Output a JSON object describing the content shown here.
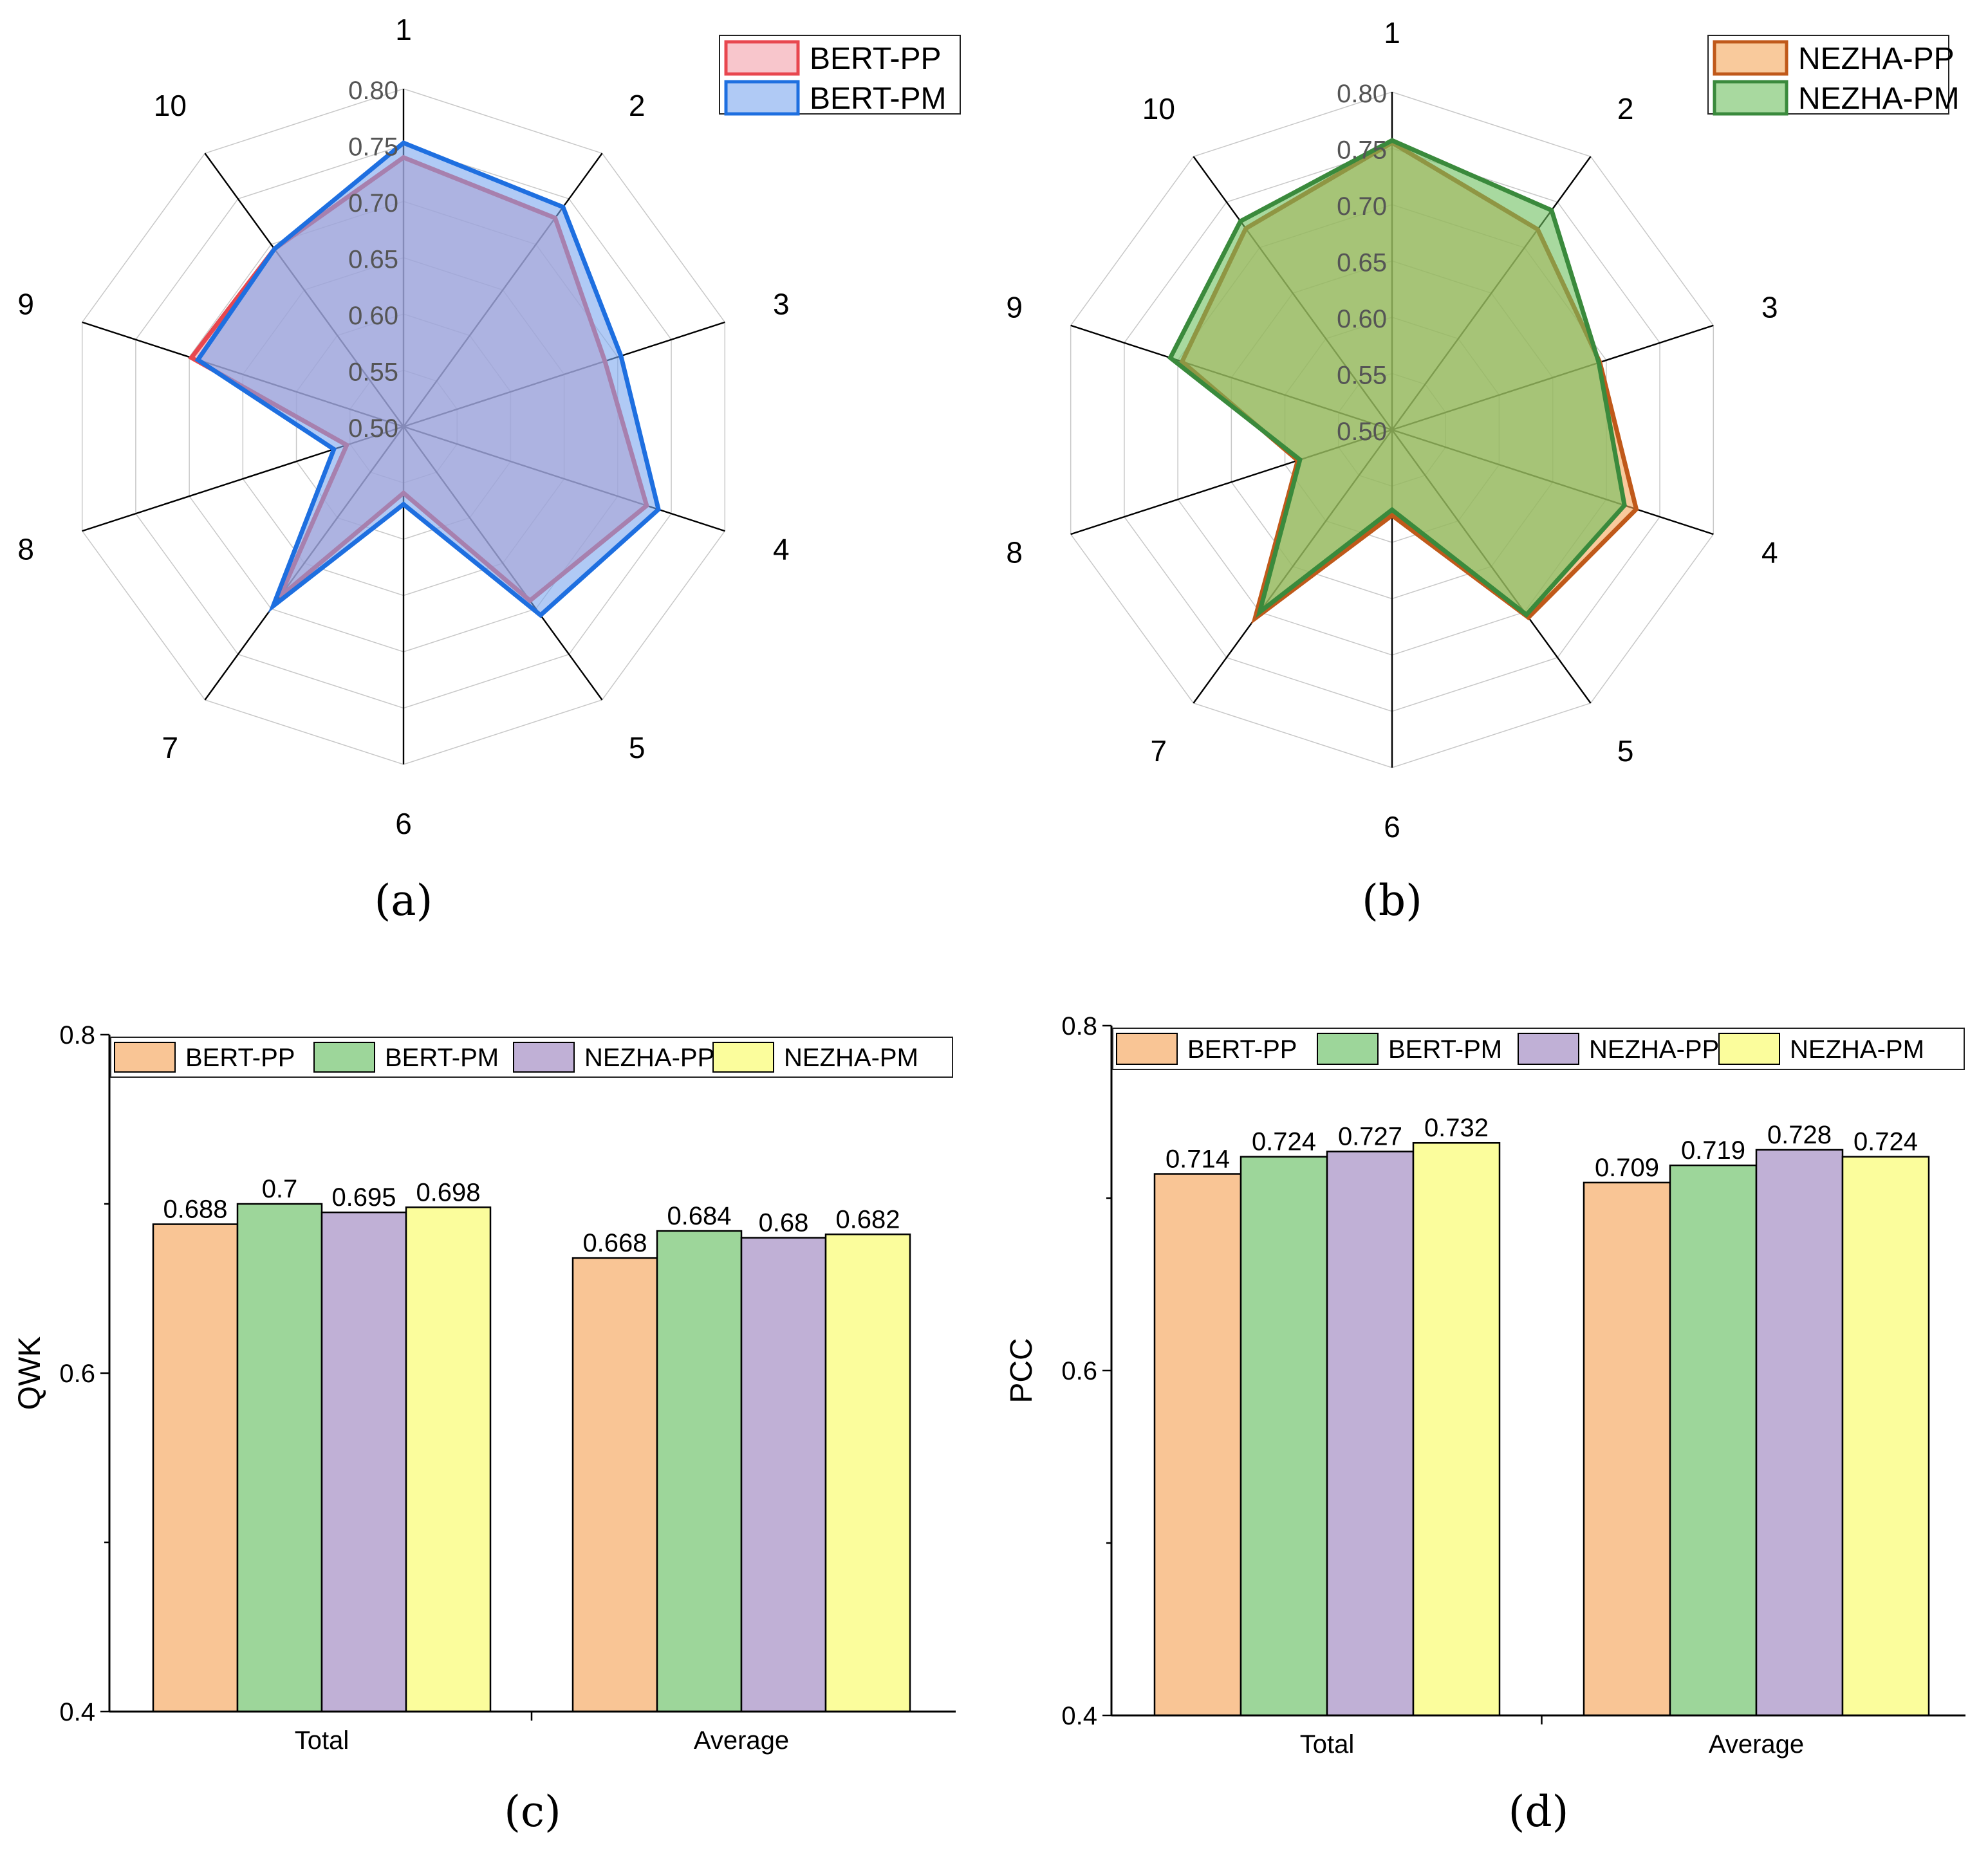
{
  "chart_data": [
    {
      "id": "a",
      "type": "radar",
      "panel_label": "(a)",
      "axes": [
        "1",
        "2",
        "3",
        "4",
        "5",
        "6",
        "7",
        "8",
        "9",
        "10"
      ],
      "rlim": [
        0.5,
        0.8
      ],
      "ticks": [
        "0.50",
        "0.55",
        "0.60",
        "0.65",
        "0.70",
        "0.75",
        "0.80"
      ],
      "legend_position": "top-right",
      "series": [
        {
          "name": "BERT-PP",
          "values": [
            0.739,
            0.729,
            0.688,
            0.727,
            0.691,
            0.559,
            0.687,
            0.553,
            0.698,
            0.695
          ],
          "fill": "#f4a0aa",
          "stroke": "#e8474f"
        },
        {
          "name": "BERT-PM",
          "values": [
            0.752,
            0.741,
            0.703,
            0.738,
            0.707,
            0.569,
            0.697,
            0.565,
            0.692,
            0.695
          ],
          "fill": "#7ba6ee",
          "stroke": "#1e6fe0"
        }
      ]
    },
    {
      "id": "b",
      "type": "radar",
      "panel_label": "(b)",
      "axes": [
        "1",
        "2",
        "3",
        "4",
        "5",
        "6",
        "7",
        "8",
        "9",
        "10"
      ],
      "rlim": [
        0.5,
        0.8
      ],
      "ticks": [
        "0.50",
        "0.55",
        "0.60",
        "0.65",
        "0.70",
        "0.75",
        "0.80"
      ],
      "legend_position": "top-right",
      "series": [
        {
          "name": "NEZHA-PP",
          "values": [
            0.755,
            0.72,
            0.694,
            0.728,
            0.706,
            0.576,
            0.707,
            0.588,
            0.696,
            0.721
          ],
          "fill": "#f5a75a",
          "stroke": "#c0591a"
        },
        {
          "name": "NEZHA-PM",
          "values": [
            0.757,
            0.741,
            0.693,
            0.717,
            0.703,
            0.571,
            0.7,
            0.586,
            0.707,
            0.729
          ],
          "fill": "#6ebf5f",
          "stroke": "#3a8a3c"
        }
      ]
    },
    {
      "id": "c",
      "type": "bar",
      "panel_label": "(c)",
      "ylabel": "QWK",
      "xlabel": "",
      "ylim": [
        0.4,
        0.8
      ],
      "yticks": [
        "0.4",
        "0.6",
        "0.8"
      ],
      "categories": [
        "Total",
        "Average"
      ],
      "legend_position": "top",
      "series": [
        {
          "name": "BERT-PP",
          "values": [
            0.688,
            0.668
          ],
          "labels": [
            "0.688",
            "0.668"
          ],
          "color": "#f9c595"
        },
        {
          "name": "BERT-PM",
          "values": [
            0.7,
            0.684
          ],
          "labels": [
            "0.7",
            "0.684"
          ],
          "color": "#9dd69a"
        },
        {
          "name": "NEZHA-PP",
          "values": [
            0.695,
            0.68
          ],
          "labels": [
            "0.695",
            "0.68"
          ],
          "color": "#c0b0d6"
        },
        {
          "name": "NEZHA-PM",
          "values": [
            0.698,
            0.682
          ],
          "labels": [
            "0.698",
            "0.682"
          ],
          "color": "#fbfd9c"
        }
      ]
    },
    {
      "id": "d",
      "type": "bar",
      "panel_label": "(d)",
      "ylabel": "PCC",
      "xlabel": "",
      "ylim": [
        0.4,
        0.8
      ],
      "yticks": [
        "0.4",
        "0.6",
        "0.8"
      ],
      "categories": [
        "Total",
        "Average"
      ],
      "legend_position": "top",
      "series": [
        {
          "name": "BERT-PP",
          "values": [
            0.714,
            0.709
          ],
          "labels": [
            "0.714",
            "0.709"
          ],
          "color": "#f9c595"
        },
        {
          "name": "BERT-PM",
          "values": [
            0.724,
            0.719
          ],
          "labels": [
            "0.724",
            "0.719"
          ],
          "color": "#9dd69a"
        },
        {
          "name": "NEZHA-PP",
          "values": [
            0.727,
            0.728
          ],
          "labels": [
            "0.727",
            "0.728"
          ],
          "color": "#c0b0d6"
        },
        {
          "name": "NEZHA-PM",
          "values": [
            0.732,
            0.724
          ],
          "labels": [
            "0.732",
            "0.724"
          ],
          "color": "#fbfd9c"
        }
      ]
    }
  ]
}
